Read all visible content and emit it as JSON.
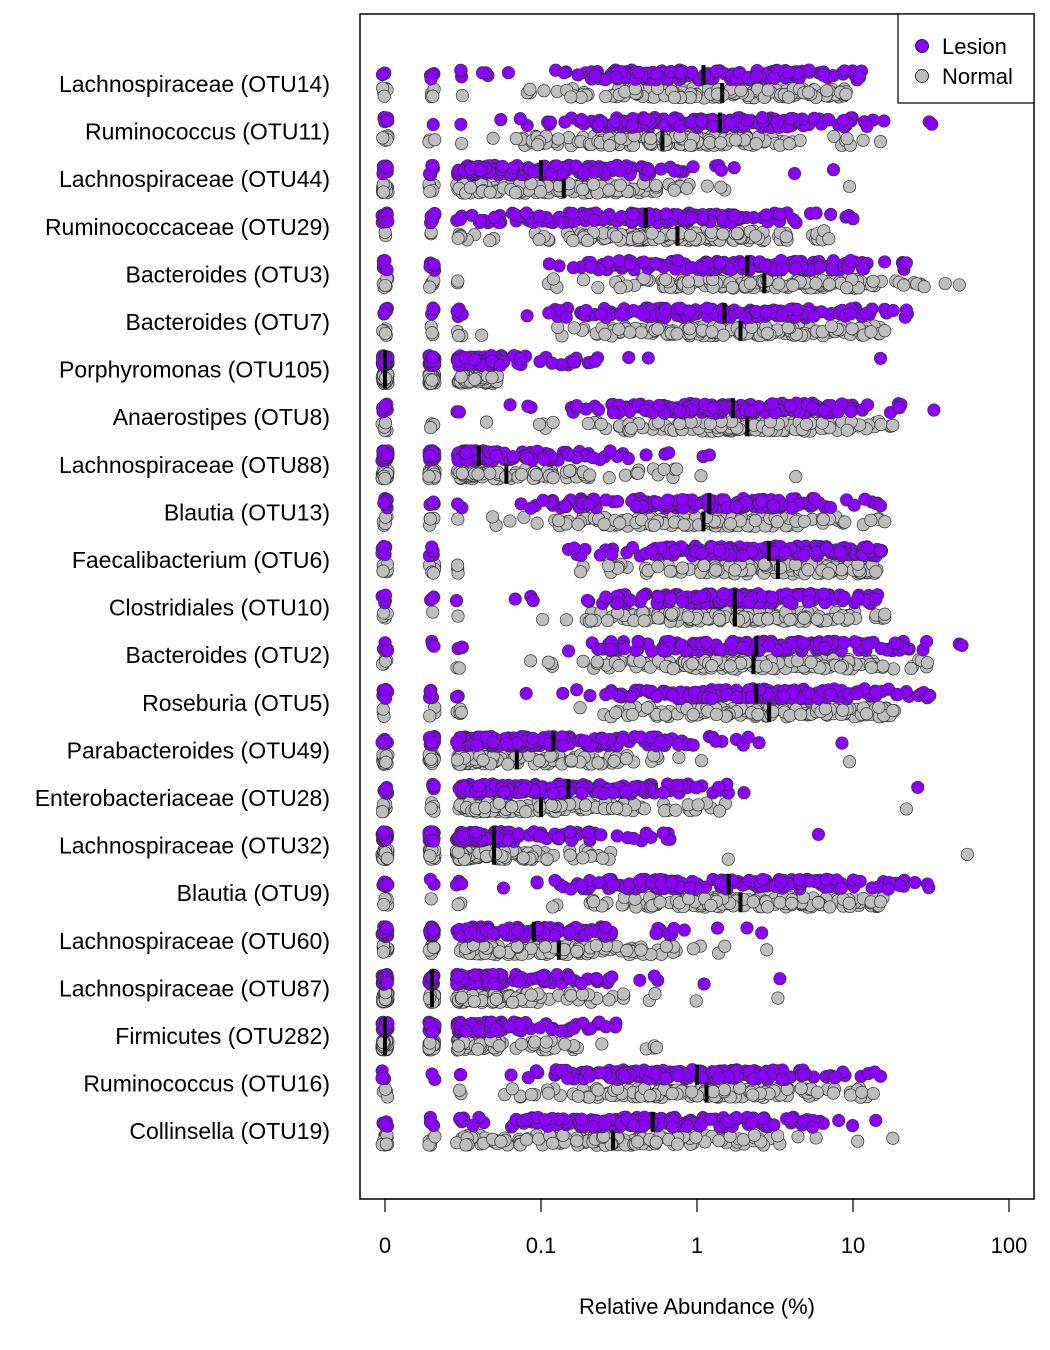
{
  "chart_data": {
    "type": "scatter",
    "xlabel": "Relative Abundance (%)",
    "x_scale": "log",
    "x_ticks": [
      "0",
      "0.1",
      "1",
      "10",
      "100"
    ],
    "x_tick_values": [
      0.01,
      0.1,
      1,
      10,
      100
    ],
    "xlim": [
      0.0085,
      135
    ],
    "grid": false,
    "legend_placement": "top-right",
    "legend": [
      {
        "name": "Lesion",
        "color": "#8B00FF"
      },
      {
        "name": "Normal",
        "color": "#BEBEBE"
      }
    ],
    "series": [
      {
        "name": "Lesion",
        "color": "#8B00FF"
      },
      {
        "name": "Normal",
        "color": "#BEBEBE"
      }
    ],
    "categories": [
      {
        "label": "Lachnospiraceae (OTU14)",
        "lesion_median": 1.1,
        "normal_median": 1.45,
        "lesion_max": 11,
        "normal_max": 9
      },
      {
        "label": "Ruminococcus (OTU11)",
        "lesion_median": 1.4,
        "normal_median": 0.6,
        "lesion_max": 32,
        "normal_max": 15
      },
      {
        "label": "Lachnospiraceae (OTU44)",
        "lesion_median": 0.1,
        "normal_median": 0.14,
        "lesion_max": 7.5,
        "normal_max": 9.5
      },
      {
        "label": "Ruminococcaceae (OTU29)",
        "lesion_median": 0.47,
        "normal_median": 0.75,
        "lesion_max": 10,
        "normal_max": 7
      },
      {
        "label": "Bacteroides (OTU3)",
        "lesion_median": 2.1,
        "normal_median": 2.7,
        "lesion_max": 22,
        "normal_max": 48
      },
      {
        "label": "Bacteroides (OTU7)",
        "lesion_median": 1.5,
        "normal_median": 1.9,
        "lesion_max": 22,
        "normal_max": 16
      },
      {
        "label": "Porphyromonas (OTU105)",
        "lesion_median": 0.01,
        "normal_median": 0.01,
        "lesion_max": 15,
        "normal_max": 0.02
      },
      {
        "label": "Anaerostipes (OTU8)",
        "lesion_median": 1.7,
        "normal_median": 2.1,
        "lesion_max": 33,
        "normal_max": 18
      },
      {
        "label": "Lachnospiraceae (OTU88)",
        "lesion_median": 0.04,
        "normal_median": 0.06,
        "lesion_max": 1.2,
        "normal_max": 4.3
      },
      {
        "label": "Blautia (OTU13)",
        "lesion_median": 1.2,
        "normal_median": 1.1,
        "lesion_max": 15,
        "normal_max": 16
      },
      {
        "label": "Faecalibacterium (OTU6)",
        "lesion_median": 2.9,
        "normal_median": 3.3,
        "lesion_max": 15,
        "normal_max": 14
      },
      {
        "label": "Clostridiales (OTU10)",
        "lesion_median": 1.75,
        "normal_median": 1.75,
        "lesion_max": 14,
        "normal_max": 16
      },
      {
        "label": "Bacteroides (OTU2)",
        "lesion_median": 2.4,
        "normal_median": 2.3,
        "lesion_max": 50,
        "normal_max": 30
      },
      {
        "label": "Roseburia (OTU5)",
        "lesion_median": 2.4,
        "normal_median": 2.9,
        "lesion_max": 31,
        "normal_max": 18
      },
      {
        "label": "Parabacteroides (OTU49)",
        "lesion_median": 0.12,
        "normal_median": 0.07,
        "lesion_max": 8.5,
        "normal_max": 9.5
      },
      {
        "label": "Enterobacteriaceae (OTU28)",
        "lesion_median": 0.15,
        "normal_median": 0.1,
        "lesion_max": 26,
        "normal_max": 22
      },
      {
        "label": "Lachnospiraceae (OTU32)",
        "lesion_median": 0.05,
        "normal_median": 0.05,
        "lesion_max": 6,
        "normal_max": 54
      },
      {
        "label": "Blautia (OTU9)",
        "lesion_median": 1.6,
        "normal_median": 1.9,
        "lesion_max": 30,
        "normal_max": 15
      },
      {
        "label": "Lachnospiraceae (OTU60)",
        "lesion_median": 0.09,
        "normal_median": 0.13,
        "lesion_max": 2.6,
        "normal_max": 2.8
      },
      {
        "label": "Lachnospiraceae (OTU87)",
        "lesion_median": 0.02,
        "normal_median": 0.02,
        "lesion_max": 3.4,
        "normal_max": 3.3
      },
      {
        "label": "Firmicutes (OTU282)",
        "lesion_median": 0.01,
        "normal_median": 0.01,
        "lesion_max": 0.3,
        "normal_max": 0.55
      },
      {
        "label": "Ruminococcus (OTU16)",
        "lesion_median": 1.0,
        "normal_median": 1.15,
        "lesion_max": 15,
        "normal_max": 13.5
      },
      {
        "label": "Collinsella (OTU19)",
        "lesion_median": 0.52,
        "normal_median": 0.29,
        "lesion_max": 14,
        "normal_max": 18
      }
    ]
  }
}
